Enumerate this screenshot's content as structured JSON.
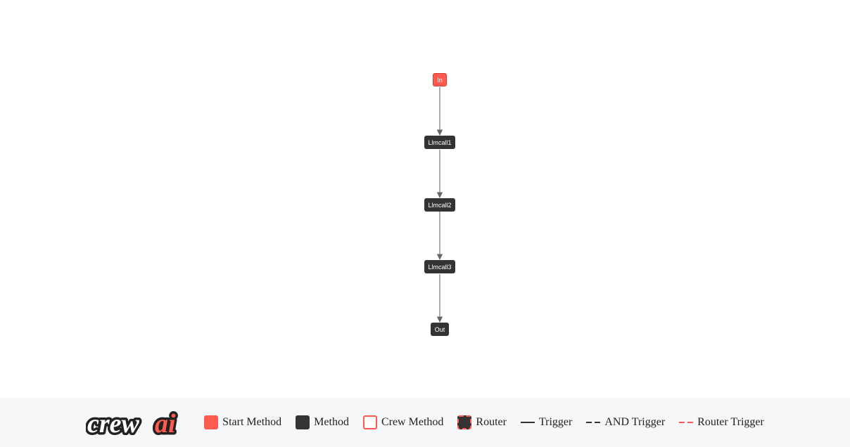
{
  "flow": {
    "nodes": [
      {
        "id": "in",
        "label": "In",
        "kind": "start"
      },
      {
        "id": "llmcall1",
        "label": "Llmcall1",
        "kind": "method"
      },
      {
        "id": "llmcall2",
        "label": "Llmcall2",
        "kind": "method"
      },
      {
        "id": "llmcall3",
        "label": "Llmcall3",
        "kind": "method"
      },
      {
        "id": "out",
        "label": "Out",
        "kind": "method"
      }
    ],
    "edges": [
      {
        "from": "in",
        "to": "llmcall1",
        "kind": "trigger"
      },
      {
        "from": "llmcall1",
        "to": "llmcall2",
        "kind": "trigger"
      },
      {
        "from": "llmcall2",
        "to": "llmcall3",
        "kind": "trigger"
      },
      {
        "from": "llmcall3",
        "to": "out",
        "kind": "trigger"
      }
    ]
  },
  "legend": {
    "logo_icon": "crewai-logo",
    "items": [
      {
        "label": "Start Method",
        "swatch": "filled",
        "color": "#ff5a50"
      },
      {
        "label": "Method",
        "swatch": "filled",
        "color": "#333333"
      },
      {
        "label": "Crew Method",
        "swatch": "outline",
        "color": "#ff5a50"
      },
      {
        "label": "Router",
        "swatch": "dashed-box",
        "color": "#ff5a50"
      },
      {
        "label": "Trigger",
        "swatch": "solid-line",
        "color": "#333333"
      },
      {
        "label": "AND Trigger",
        "swatch": "dashed-line",
        "color": "#333333"
      },
      {
        "label": "Router Trigger",
        "swatch": "dashed-line",
        "color": "#ff5a50"
      }
    ]
  }
}
